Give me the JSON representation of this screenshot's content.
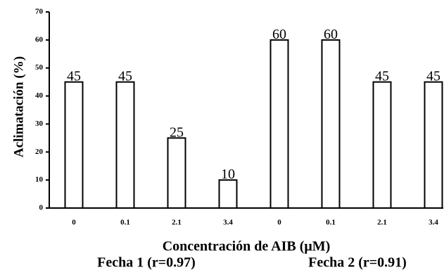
{
  "chart_data": {
    "type": "bar",
    "categories": [
      "0",
      "0.1",
      "2.1",
      "3.4",
      "0",
      "0.1",
      "2.1",
      "3.4"
    ],
    "values": [
      45,
      45,
      25,
      10,
      60,
      60,
      45,
      45
    ],
    "data_labels": [
      "45",
      "45",
      "25",
      "10",
      "60",
      "60",
      "45",
      "45"
    ],
    "ylabel": "Aclimatación (%)",
    "xlabel": "Concentración de AIB (μM)",
    "yticks": [
      "0",
      "10",
      "20",
      "30",
      "40",
      "50",
      "60",
      "70"
    ],
    "ylim": [
      0,
      70
    ],
    "grid": false,
    "groups": [
      {
        "label": "Fecha 1 (r=0.97)",
        "categories": [
          "0",
          "0.1",
          "2.1",
          "3.4"
        ]
      },
      {
        "label": "Fecha 2 (r=0.91)",
        "categories": [
          "0",
          "0.1",
          "2.1",
          "3.4"
        ]
      }
    ],
    "colors": {
      "bar_fill": "#ffffff",
      "bar_stroke": "#000000"
    }
  }
}
